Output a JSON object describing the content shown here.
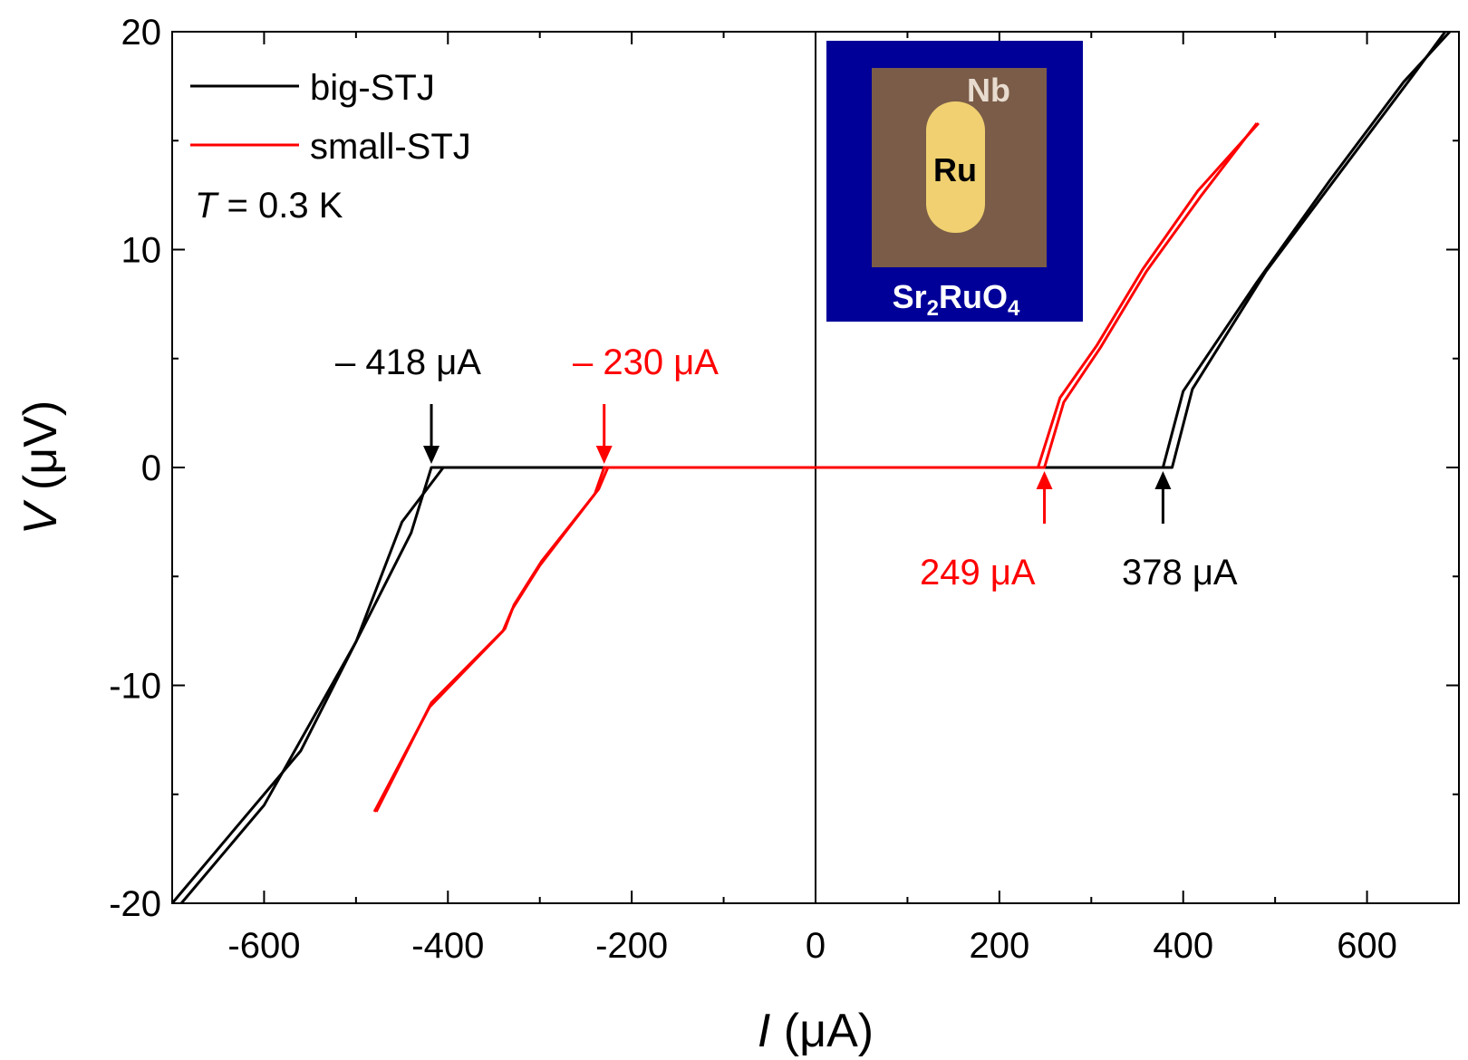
{
  "chart_data": {
    "type": "line",
    "xlabel_symbol": "I",
    "xlabel_unit": " (μA)",
    "ylabel_symbol": "V",
    "ylabel_unit": " (μV)",
    "xlim": [
      -700,
      700
    ],
    "ylim": [
      -20,
      20
    ],
    "xticks": [
      -600,
      -400,
      -200,
      0,
      200,
      400,
      600
    ],
    "xtick_labels": [
      "-600",
      "-400",
      "-200",
      "0",
      "200",
      "400",
      "600"
    ],
    "yticks": [
      -20,
      -10,
      0,
      10,
      20
    ],
    "ytick_labels": [
      "-20",
      "-10",
      "0",
      "10",
      "20"
    ],
    "grid": false,
    "legend_position": "top-left",
    "condition_symbol": "T",
    "condition_value": " = 0.3 K",
    "colors": {
      "big": "#000000",
      "small": "#ff0000",
      "inset_bg": "#000099",
      "inset_nb": "#7a5c48",
      "inset_ru": "#f0d070"
    },
    "series": [
      {
        "key": "big",
        "name": "big-STJ",
        "color": "#000000",
        "branches": [
          [
            [
              -700,
              -20
            ],
            [
              -560,
              -13
            ],
            [
              -440,
              -3
            ],
            [
              -418,
              0
            ],
            [
              -400,
              0
            ],
            [
              370,
              0
            ],
            [
              378,
              0
            ],
            [
              400,
              3.5
            ],
            [
              480,
              8.5
            ],
            [
              560,
              13.2
            ],
            [
              640,
              17.7
            ],
            [
              690,
              20
            ]
          ],
          [
            [
              -690,
              -20
            ],
            [
              -600,
              -15.5
            ],
            [
              -500,
              -8
            ],
            [
              -450,
              -2.5
            ],
            [
              -405,
              0
            ],
            [
              -395,
              0
            ],
            [
              360,
              0
            ],
            [
              388,
              0
            ],
            [
              410,
              3.6
            ],
            [
              490,
              9
            ],
            [
              570,
              13.5
            ],
            [
              650,
              18
            ],
            [
              685,
              20
            ]
          ]
        ]
      },
      {
        "key": "small",
        "name": "small-STJ",
        "color": "#ff0000",
        "branches": [
          [
            [
              -480,
              -15.8
            ],
            [
              -420,
              -11
            ],
            [
              -340,
              -7.5
            ],
            [
              -330,
              -6.5
            ],
            [
              -300,
              -4.5
            ],
            [
              -240,
              -1.2
            ],
            [
              -230,
              0
            ],
            [
              230,
              0
            ],
            [
              249,
              0
            ],
            [
              270,
              3
            ],
            [
              310,
              5.5
            ],
            [
              360,
              9
            ],
            [
              420,
              12.5
            ],
            [
              480,
              15.8
            ]
          ],
          [
            [
              -478,
              -15.8
            ],
            [
              -418,
              -10.8
            ],
            [
              -338,
              -7.4
            ],
            [
              -328,
              -6.3
            ],
            [
              -298,
              -4.3
            ],
            [
              -236,
              -1
            ],
            [
              -226,
              0
            ],
            [
              222,
              0
            ],
            [
              242,
              0
            ],
            [
              266,
              3.2
            ],
            [
              306,
              5.6
            ],
            [
              356,
              9.1
            ],
            [
              416,
              12.7
            ],
            [
              482,
              15.8
            ]
          ]
        ]
      }
    ],
    "annotations": [
      {
        "key": "neg_big",
        "text": "– 418 μA",
        "x": -418,
        "y": 0,
        "color": "#000000",
        "direction": "down"
      },
      {
        "key": "neg_small",
        "text": "– 230 μA",
        "x": -230,
        "y": 0,
        "color": "#ff0000",
        "direction": "down"
      },
      {
        "key": "pos_small",
        "text": "249 μA",
        "x": 249,
        "y": 0,
        "color": "#ff0000",
        "direction": "up"
      },
      {
        "key": "pos_big",
        "text": "378 μA",
        "x": 378,
        "y": 0,
        "color": "#000000",
        "direction": "up"
      }
    ],
    "inset": {
      "outer_label_main": "Sr",
      "outer_label_sub1": "2",
      "outer_label_mid": "RuO",
      "outer_label_sub2": "4",
      "film_label": "Nb",
      "island_label": "Ru"
    }
  }
}
